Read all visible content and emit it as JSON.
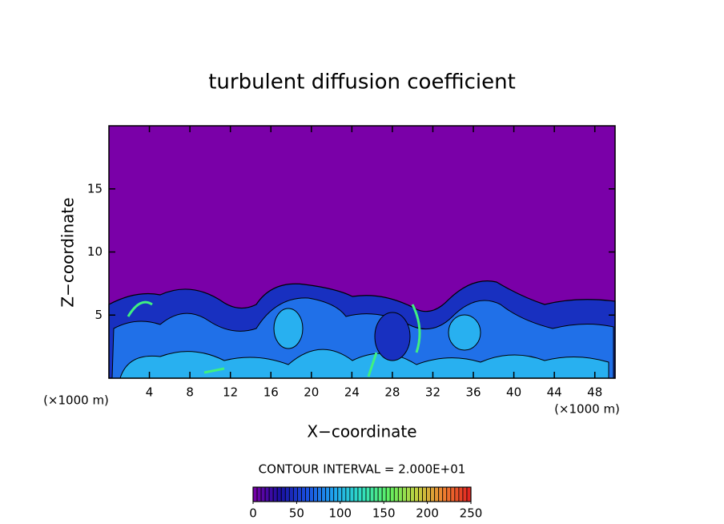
{
  "chart_data": {
    "type": "contour",
    "title": "turbulent diffusion coefficient",
    "xlabel": "X−coordinate",
    "ylabel": "Z−coordinate",
    "x_unit_labels": [
      "(×1000 m)",
      "(×1000 m)"
    ],
    "xlim": [
      0,
      50
    ],
    "ylim": [
      0,
      20
    ],
    "xticks": [
      4,
      8,
      12,
      16,
      20,
      24,
      28,
      32,
      36,
      40,
      44,
      48
    ],
    "yticks": [
      5,
      10,
      15
    ],
    "contour_interval_label": "CONTOUR INTERVAL = 2.000E+01",
    "colorbar_lim": [
      0,
      250
    ],
    "colorbar_ticks": [
      0,
      50,
      100,
      150,
      200,
      250
    ],
    "colormap": [
      "#7a00a8",
      "#1a10a0",
      "#1a50e0",
      "#20a8f0",
      "#30e0c0",
      "#60f060",
      "#c0d040",
      "#f08030",
      "#e02020"
    ]
  }
}
